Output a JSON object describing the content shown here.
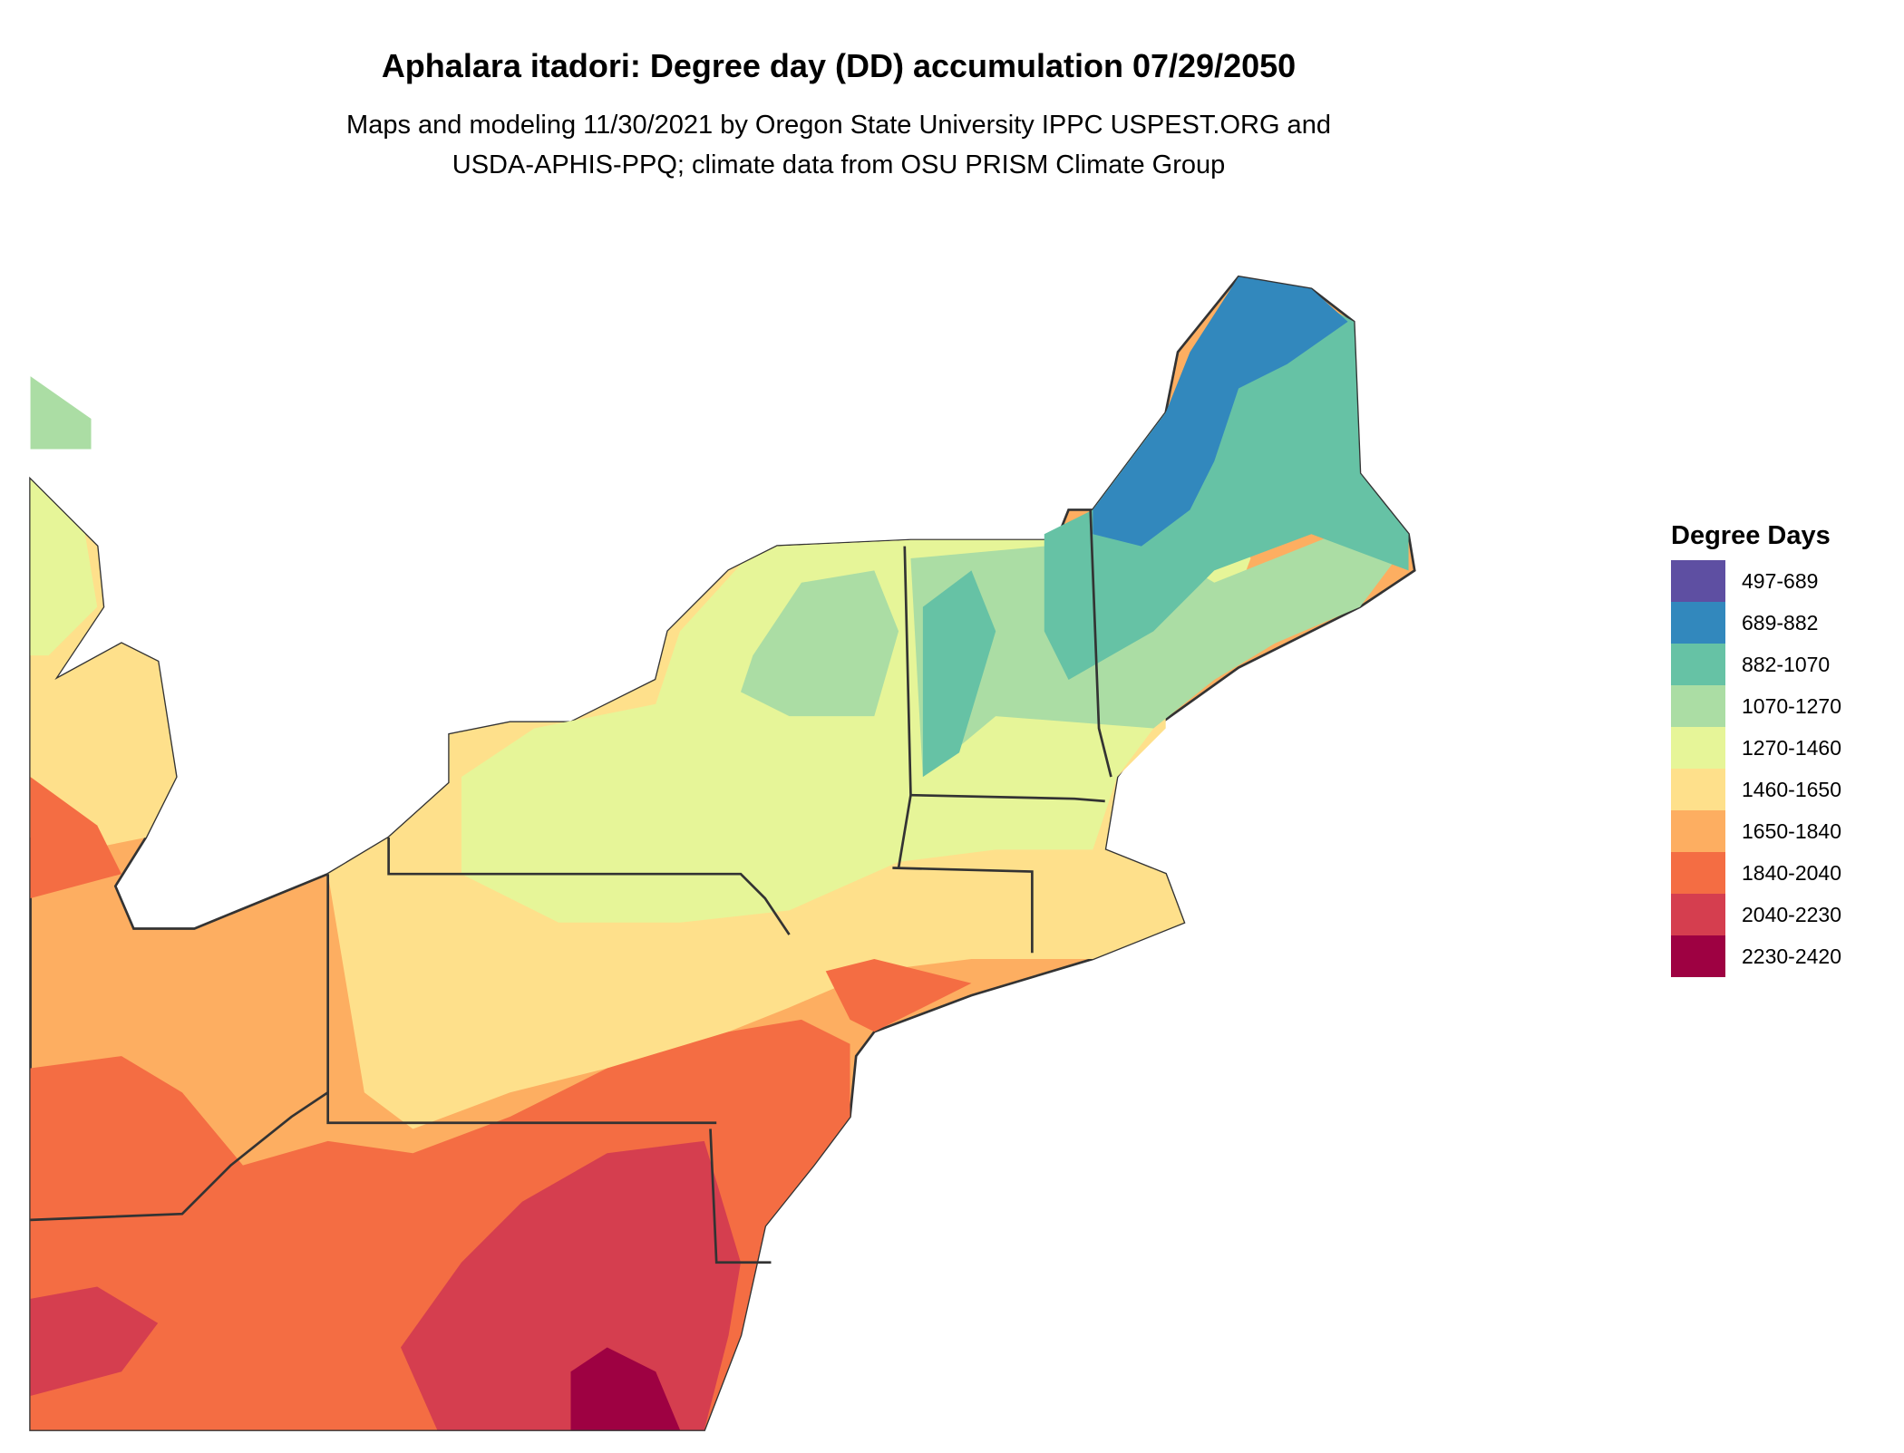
{
  "header": {
    "title": "Aphalara itadori: Degree day (DD) accumulation 07/29/2050",
    "subtitle_line1": "Maps and modeling 11/30/2021 by Oregon State University IPPC USPEST.ORG and",
    "subtitle_line2": "USDA-APHIS-PPQ; climate data from OSU PRISM Climate Group"
  },
  "legend": {
    "title": "Degree Days",
    "items": [
      {
        "label": "497-689",
        "color": "#5E4FA2"
      },
      {
        "label": "689-882",
        "color": "#3288BD"
      },
      {
        "label": "882-1070",
        "color": "#66C2A5"
      },
      {
        "label": "1070-1270",
        "color": "#ABDDA4"
      },
      {
        "label": "1270-1460",
        "color": "#E6F598"
      },
      {
        "label": "1460-1650",
        "color": "#FEE08B"
      },
      {
        "label": "1650-1840",
        "color": "#FDAE61"
      },
      {
        "label": "1840-2040",
        "color": "#F46D43"
      },
      {
        "label": "2040-2230",
        "color": "#D53E4F"
      },
      {
        "label": "2230-2420",
        "color": "#9E0142"
      }
    ]
  },
  "colors": {
    "border": "#333333"
  }
}
